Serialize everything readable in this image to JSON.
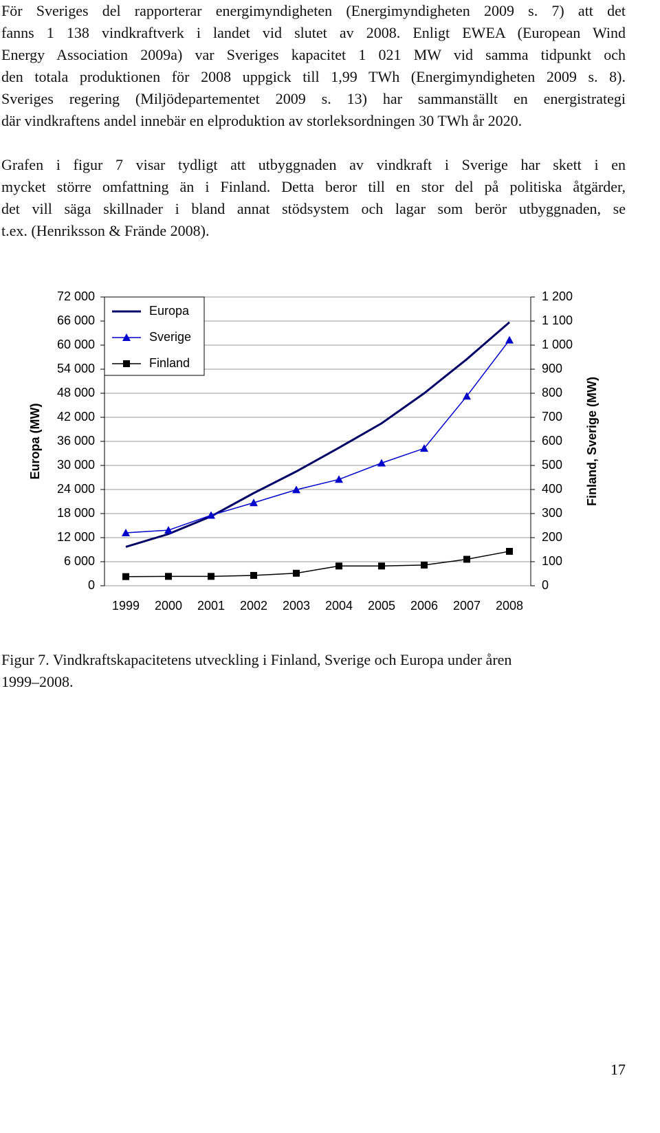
{
  "paragraphs": [
    [
      "För Sveriges del rapporterar energimyndigheten (Energimyndigheten 2009 s. 7) att det",
      "fanns 1 138 vindkraftverk i landet vid slutet av 2008. Enligt EWEA (European Wind",
      "Energy Association 2009a) var Sveriges kapacitet 1 021 MW vid samma tidpunkt och",
      "den totala produktionen för 2008 uppgick till 1,99 TWh (Energimyndigheten 2009 s. 8).",
      "Sveriges regering (Miljödepartementet 2009 s. 13) har sammanställt en energistrategi",
      "där vindkraftens andel innebär en elproduktion av storleksordningen 30 TWh år 2020."
    ],
    [
      "Grafen i figur 7 visar tydligt att utbyggnaden av vindkraft i Sverige har skett i en",
      "mycket större omfattning än i Finland. Detta beror till en stor del på politiska åtgärder,",
      "det vill säga skillnader i bland annat stödsystem och lagar som berör utbyggnaden, se",
      "t.ex. (Henriksson & Frände 2008)."
    ]
  ],
  "chart_data": {
    "type": "line",
    "y_label": "Europa (MW)",
    "y2_label": "Finland, Sverige (MW)",
    "categories": [
      "1999",
      "2000",
      "2001",
      "2002",
      "2003",
      "2004",
      "2005",
      "2006",
      "2007",
      "2008"
    ],
    "series": [
      {
        "name": "Europa",
        "color": "#000066",
        "values": [
          9700,
          12900,
          17300,
          23100,
          28500,
          34400,
          40500,
          48000,
          56500,
          65700
        ]
      },
      {
        "name": "Sverige",
        "color": "#0000cc",
        "marker": "triangle",
        "axis": "y2",
        "values": [
          220,
          231,
          293,
          345,
          399,
          442,
          510,
          571,
          788,
          1021
        ]
      },
      {
        "name": "Finland",
        "color": "#000000",
        "marker": "square",
        "axis": "y2",
        "values": [
          38,
          39,
          39,
          43,
          52,
          82,
          82,
          86,
          110,
          143
        ]
      }
    ],
    "ylim": [
      0,
      72000
    ],
    "yticks": [
      0,
      {
        "value": 6000,
        "label": "6 000"
      },
      {
        "value": 12000,
        "label": "12 000"
      },
      {
        "value": 18000,
        "label": "18 000"
      },
      {
        "value": 24000,
        "label": "24 000"
      },
      {
        "value": 30000,
        "label": "30 000"
      },
      {
        "value": 36000,
        "label": "36 000"
      },
      {
        "value": 42000,
        "label": "42 000"
      },
      {
        "value": 48000,
        "label": "48 000"
      },
      {
        "value": 54000,
        "label": "54 000"
      },
      {
        "value": 60000,
        "label": "60 000"
      },
      {
        "value": 66000,
        "label": "66 000"
      },
      {
        "value": 72000,
        "label": "72 000"
      }
    ],
    "y2lim": [
      0,
      1200
    ],
    "y2ticks": [
      0,
      100,
      200,
      300,
      400,
      500,
      600,
      700,
      800,
      900,
      {
        "value": 1000,
        "label": "1 000"
      },
      {
        "value": 1100,
        "label": "1 100"
      },
      {
        "value": 1200,
        "label": "1 200"
      }
    ],
    "grid": true,
    "legend": "upper left"
  },
  "caption": [
    "Figur 7. Vindkraftskapacitetens utveckling i Finland, Sverige och Europa under åren",
    "1999–2008."
  ],
  "page_number": "17"
}
